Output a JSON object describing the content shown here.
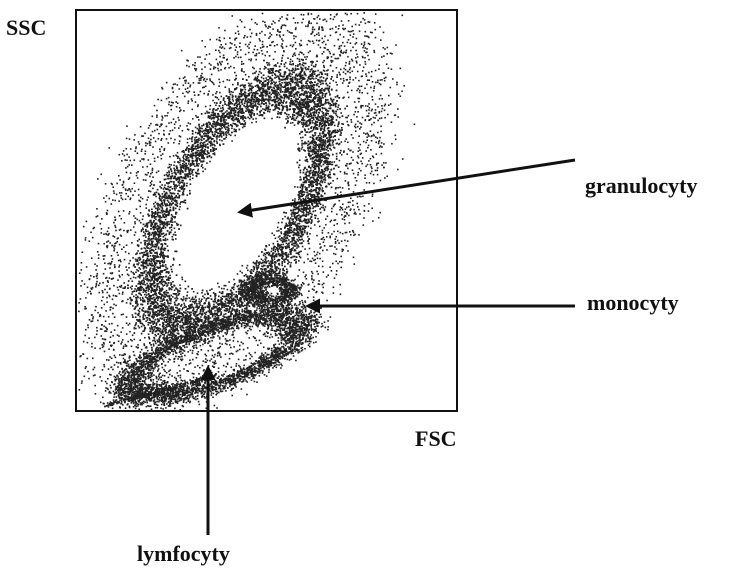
{
  "labels": {
    "y_axis": "SSC",
    "x_axis": "FSC",
    "granulocytes": "granulocyty",
    "monocytes": "monocyty",
    "lymphocytes": "lymfocyty"
  }
}
